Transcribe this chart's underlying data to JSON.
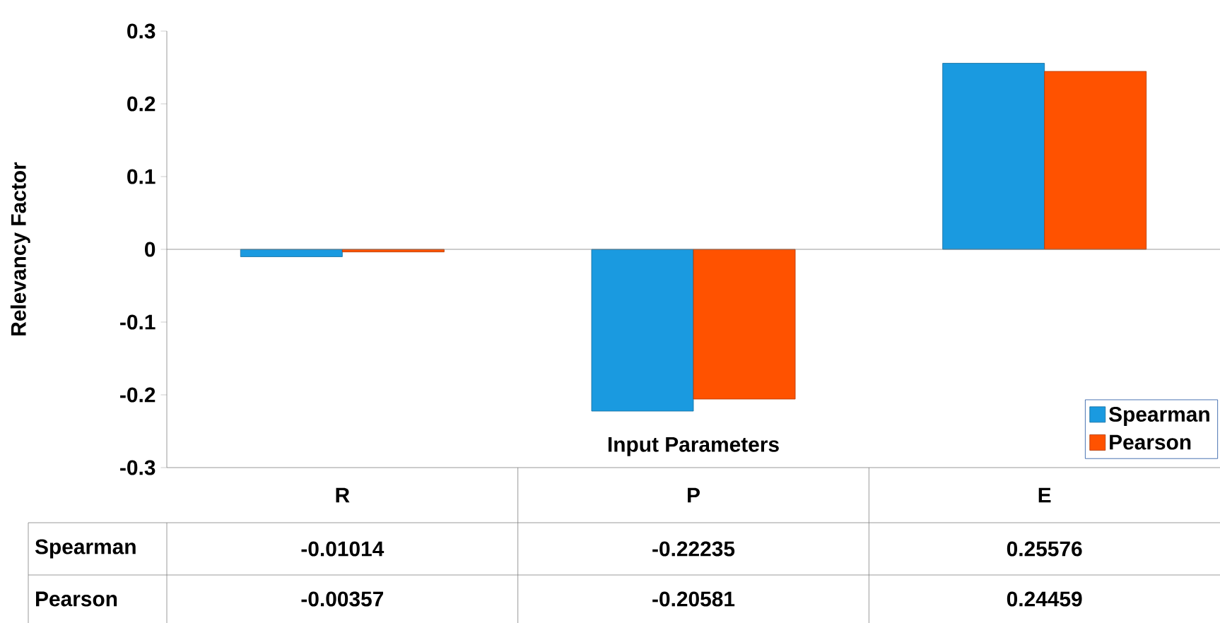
{
  "chart_data": {
    "type": "bar",
    "xlabel": "Input Parameters",
    "ylabel": "Relevancy Factor",
    "categories": [
      "R",
      "P",
      "E"
    ],
    "series": [
      {
        "name": "Spearman",
        "color": "#1a9ae0",
        "values": [
          -0.01014,
          -0.22235,
          0.25576
        ]
      },
      {
        "name": "Pearson",
        "color": "#ff5200",
        "values": [
          -0.00357,
          -0.20581,
          0.24459
        ]
      }
    ],
    "ylim": [
      -0.3,
      0.3
    ],
    "yticks": [
      -0.3,
      -0.2,
      -0.1,
      0,
      0.1,
      0.2,
      0.3
    ],
    "data_labels": true,
    "legend": "bottom right"
  }
}
